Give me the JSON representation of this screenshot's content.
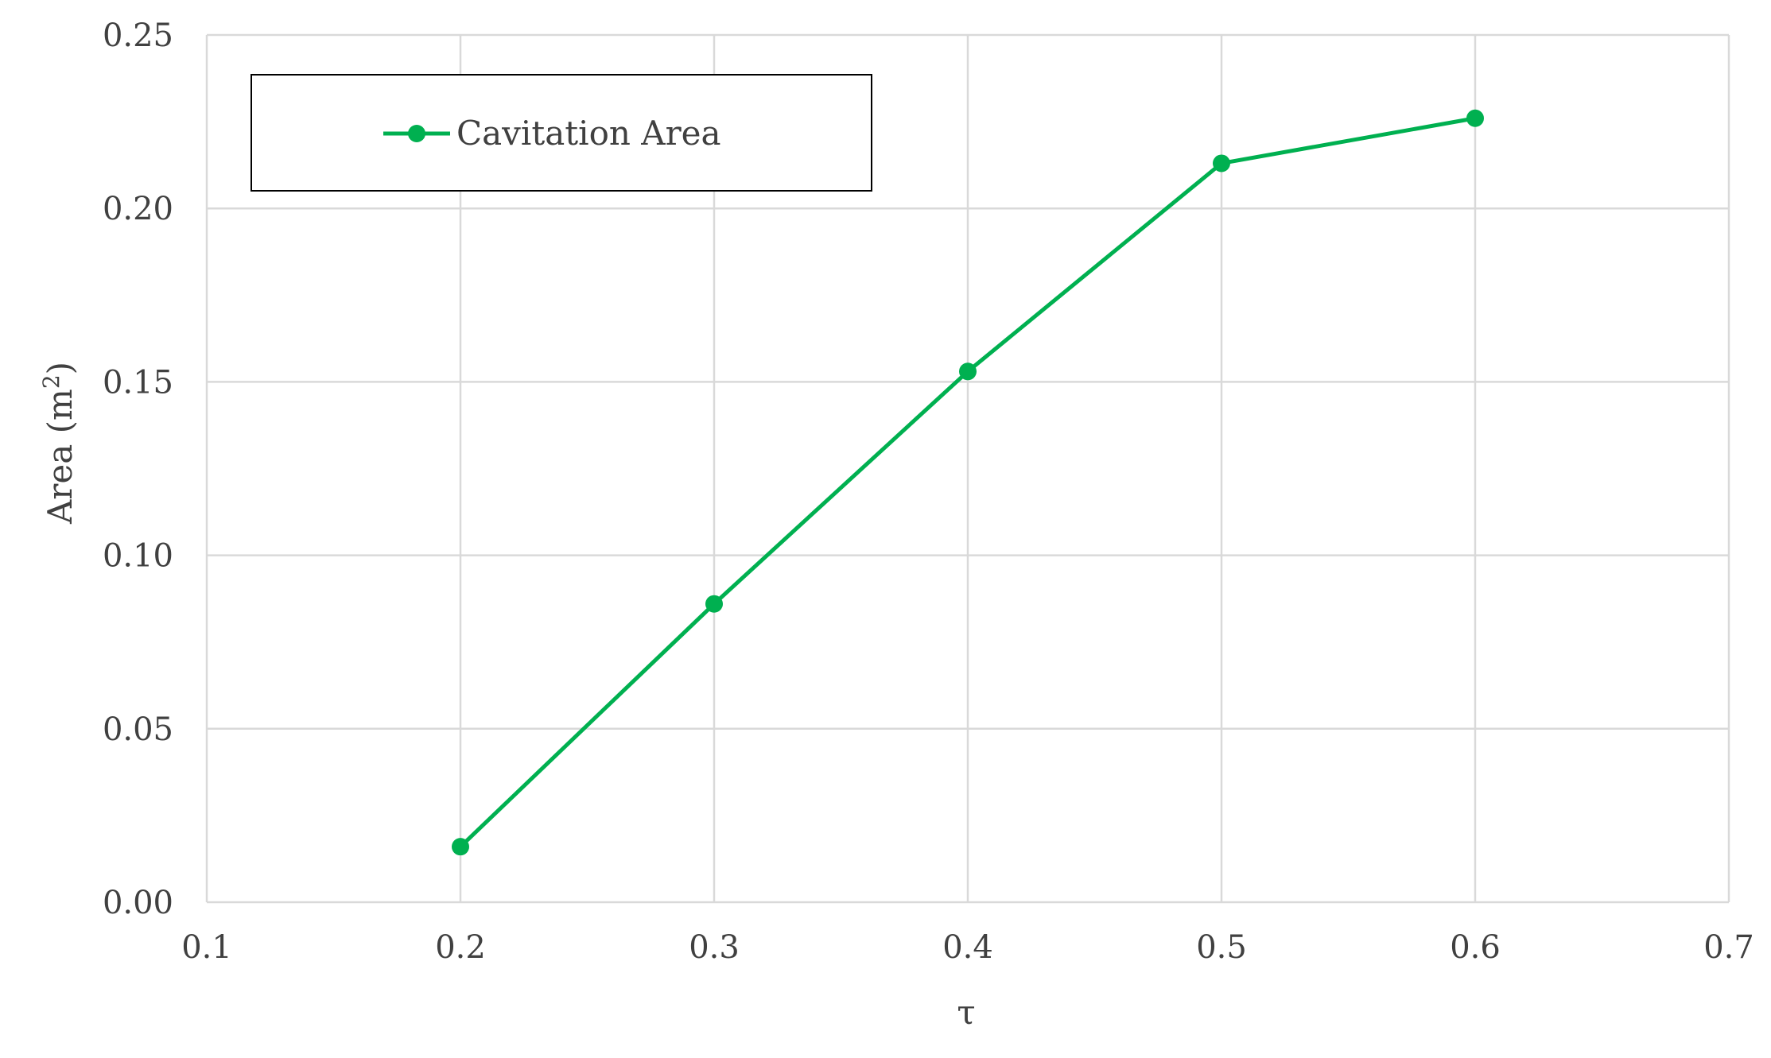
{
  "chart_data": {
    "type": "line",
    "title": "",
    "xlabel": "τ",
    "ylabel_main": "Area (m",
    "ylabel_sup": "2",
    "ylabel_end": ")",
    "xlim": [
      0.1,
      0.7
    ],
    "ylim": [
      0.0,
      0.25
    ],
    "x_ticks": [
      0.1,
      0.2,
      0.3,
      0.4,
      0.5,
      0.6,
      0.7
    ],
    "x_tick_labels": [
      "0.1",
      "0.2",
      "0.3",
      "0.4",
      "0.5",
      "0.6",
      "0.7"
    ],
    "y_ticks": [
      0.0,
      0.05,
      0.1,
      0.15,
      0.2,
      0.25
    ],
    "y_tick_labels": [
      "0.00",
      "0.05",
      "0.10",
      "0.15",
      "0.20",
      "0.25"
    ],
    "grid": true,
    "legend_position": "top-left",
    "series": [
      {
        "name": "Cavitation Area",
        "color": "#00b050",
        "marker": "circle",
        "x": [
          0.2,
          0.3,
          0.4,
          0.5,
          0.6
        ],
        "y": [
          0.016,
          0.086,
          0.153,
          0.213,
          0.226
        ]
      }
    ]
  }
}
